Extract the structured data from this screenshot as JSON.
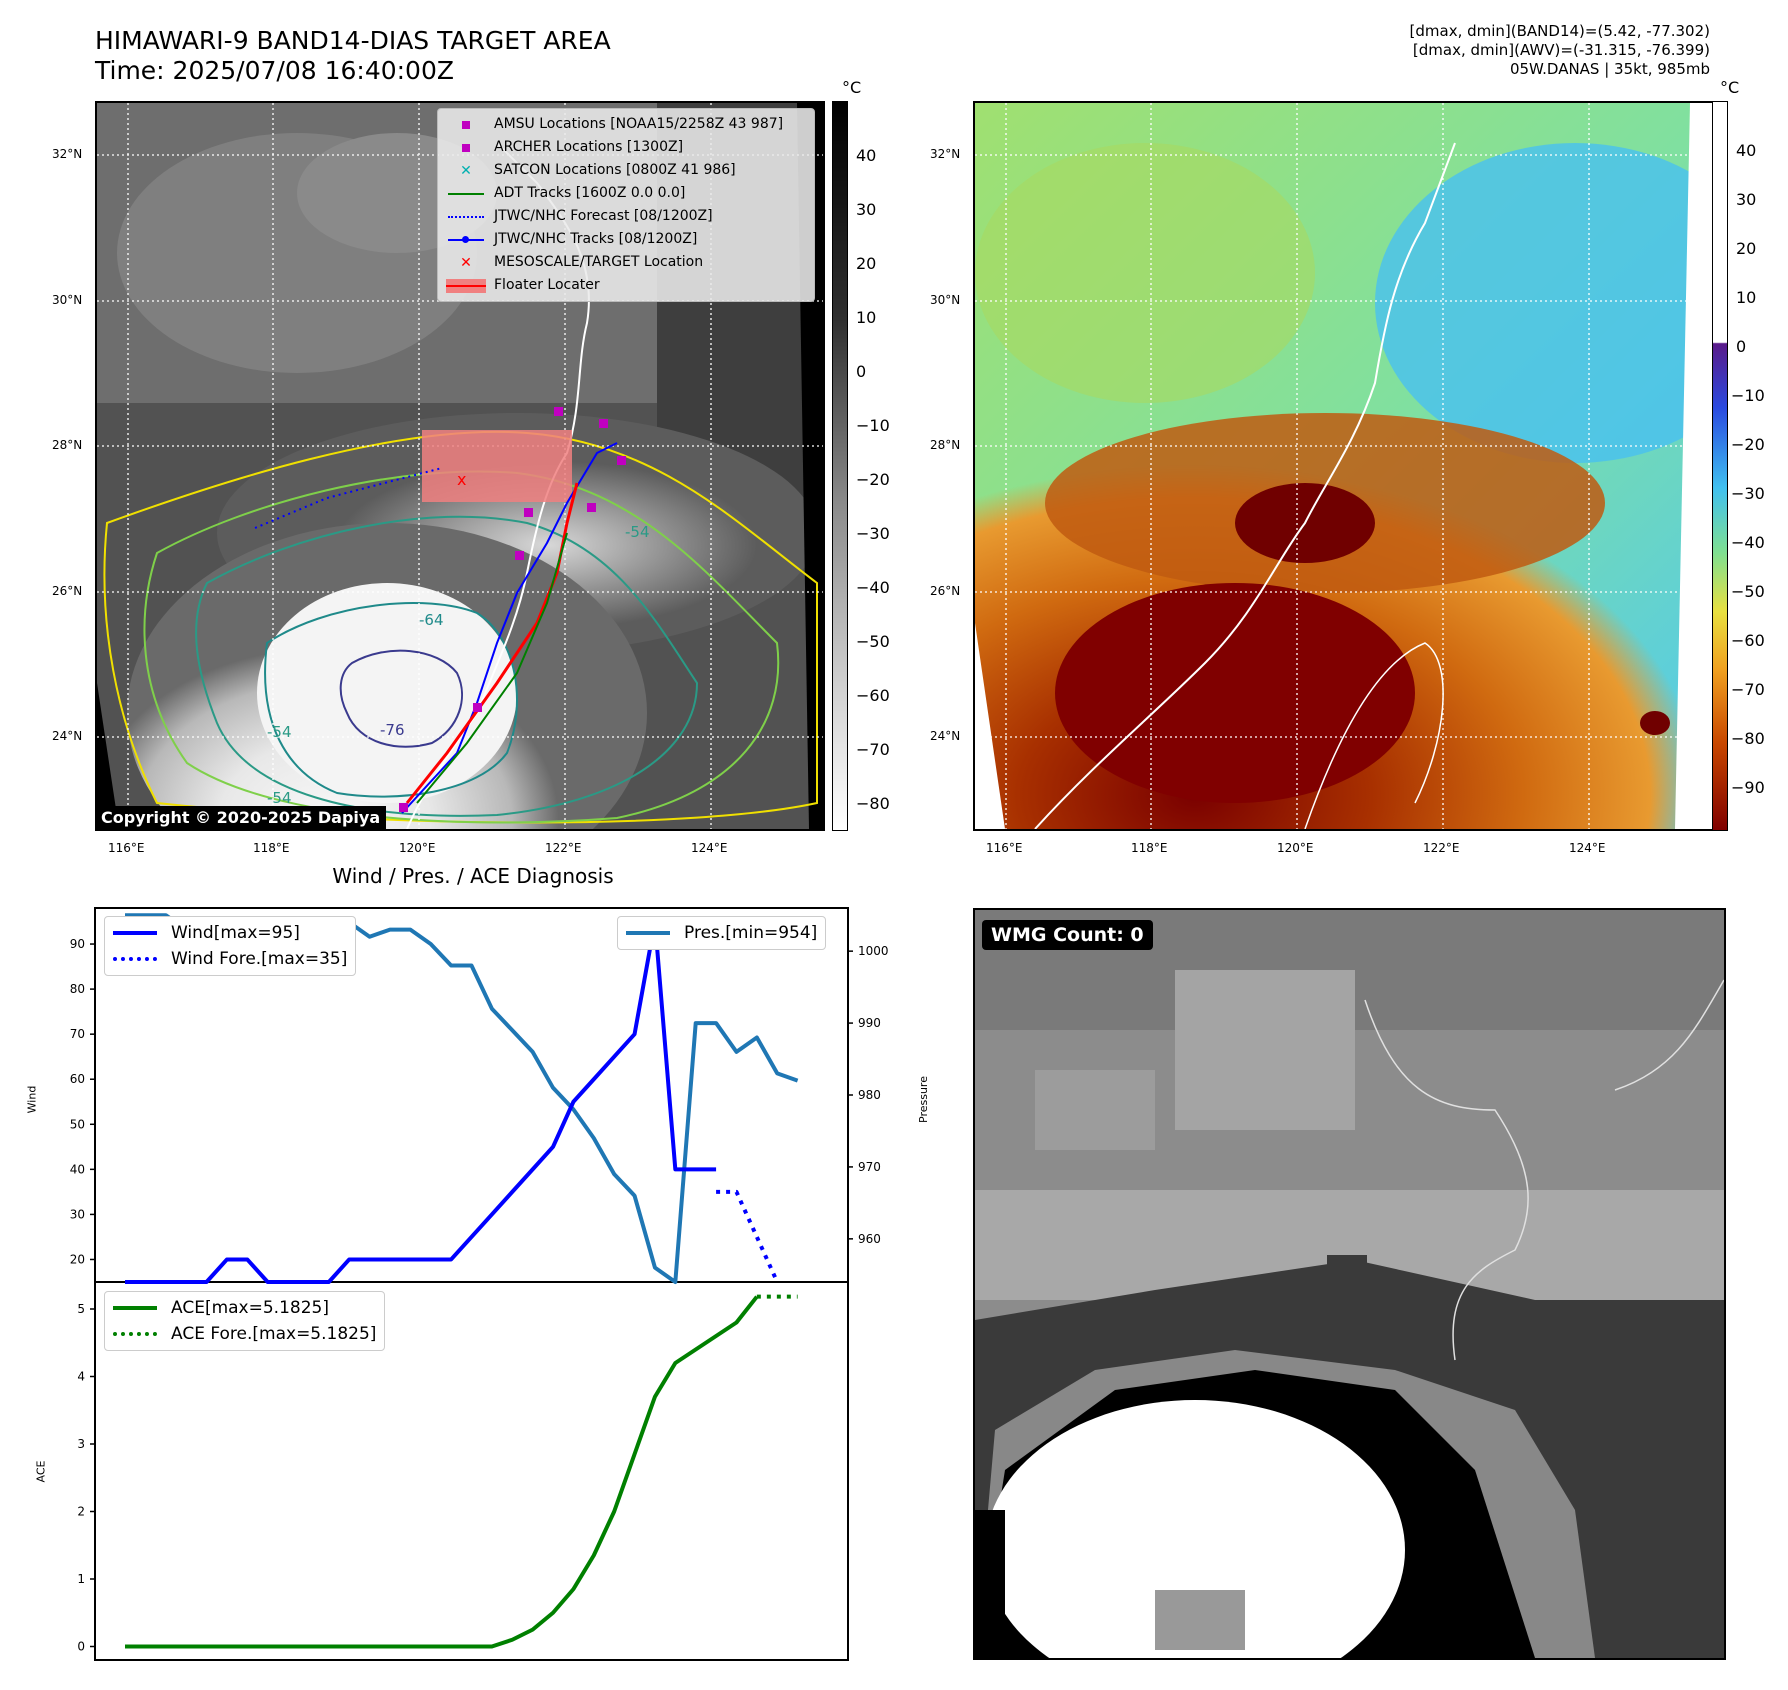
{
  "header": {
    "title_line1": "HIMAWARI-9 BAND14-DIAS TARGET AREA",
    "title_line2": "Time: 2025/07/08 16:40:00Z",
    "info_line1": "[dmax, dmin](BAND14)=(5.42, -77.302)",
    "info_line2": "[dmax, dmin](AWV)=(-31.315, -76.399)",
    "info_line3": "05W.DANAS | 35kt, 985mb"
  },
  "maps": {
    "lat_labels": [
      "32°N",
      "30°N",
      "28°N",
      "26°N",
      "24°N"
    ],
    "lon_labels": [
      "116°E",
      "118°E",
      "120°E",
      "122°E",
      "124°E"
    ],
    "unit": "°C",
    "gray_cbar_ticks": [
      "40",
      "30",
      "20",
      "10",
      "0",
      "−10",
      "−20",
      "−30",
      "−40",
      "−50",
      "−60",
      "−70",
      "−80"
    ],
    "awv_cbar_ticks": [
      "40",
      "30",
      "20",
      "10",
      "0",
      "−10",
      "−20",
      "−30",
      "−40",
      "−50",
      "−60",
      "−70",
      "−80",
      "−90"
    ],
    "contour_labels": [
      "-54",
      "-64",
      "-76",
      "-54",
      "-54"
    ],
    "copyright": "Copyright © 2020-2025 Dapiya",
    "legend": [
      {
        "label": "AMSU Locations [NOAA15/2258Z 43 987]",
        "color": "#c000c0",
        "marker": "square"
      },
      {
        "label": "ARCHER Locations [1300Z]",
        "color": "#c000c0",
        "marker": "square"
      },
      {
        "label": "SATCON Locations [0800Z 41 986]",
        "color": "#00b0b0",
        "marker": "x"
      },
      {
        "label": "ADT Tracks [1600Z 0.0 0.0]",
        "color": "#008000",
        "marker": "line"
      },
      {
        "label": "JTWC/NHC Forecast [08/1200Z]",
        "color": "#0000ff",
        "marker": "dotted"
      },
      {
        "label": "JTWC/NHC Tracks [08/1200Z]",
        "color": "#0000ff",
        "marker": "line-dot"
      },
      {
        "label": "MESOSCALE/TARGET Location",
        "color": "#ff0000",
        "marker": "x"
      },
      {
        "label": "Floater Locater",
        "color": "#ff0000",
        "marker": "patch"
      }
    ]
  },
  "diagnosis": {
    "title": "Wind / Pres. / ACE Diagnosis",
    "wind_ylabel": "Wind",
    "pres_ylabel": "Pressure",
    "ace_ylabel": "ACE",
    "wmg_count": "WMG Count: 0"
  },
  "chart_data": [
    {
      "type": "line",
      "title": "Wind / Pres. / ACE Diagnosis",
      "ylabel": "Wind",
      "ylim": [
        15,
        98
      ],
      "yticks": [
        20,
        30,
        40,
        50,
        60,
        70,
        80,
        90
      ],
      "series": [
        {
          "name": "Wind[max=95]",
          "color": "#0000ff",
          "style": "solid",
          "x": [
            0,
            1,
            2,
            3,
            4,
            5,
            6,
            7,
            8,
            9,
            10,
            11,
            12,
            13,
            14,
            15,
            16,
            17,
            18,
            19,
            20,
            21,
            22,
            23,
            24,
            25,
            26,
            27,
            28,
            29
          ],
          "values": [
            15,
            15,
            15,
            15,
            15,
            20,
            20,
            15,
            15,
            15,
            15,
            20,
            20,
            20,
            20,
            20,
            20,
            25,
            30,
            35,
            40,
            45,
            55,
            60,
            65,
            70,
            95,
            40,
            40,
            40
          ]
        },
        {
          "name": "Wind Fore.[max=35]",
          "color": "#0000ff",
          "style": "dotted",
          "x": [
            29,
            30,
            31,
            32
          ],
          "values": [
            35,
            35,
            25,
            15
          ]
        }
      ]
    },
    {
      "type": "line",
      "ylabel": "Pressure",
      "ylim": [
        954,
        1006
      ],
      "yticks": [
        960,
        970,
        980,
        990,
        1000
      ],
      "series": [
        {
          "name": "Pres.[min=954]",
          "color": "#1f77b4",
          "style": "solid",
          "x": [
            0,
            1,
            2,
            3,
            4,
            5,
            6,
            7,
            8,
            9,
            10,
            11,
            12,
            13,
            14,
            15,
            16,
            17,
            18,
            19,
            20,
            21,
            22,
            23,
            24,
            25,
            26,
            27,
            28,
            29,
            30,
            31,
            32,
            33
          ],
          "values": [
            1005,
            1005,
            1005,
            1003,
            1003,
            1003,
            1003,
            1004,
            1004,
            1003,
            1004,
            1004,
            1002,
            1003,
            1003,
            1001,
            998,
            998,
            992,
            989,
            986,
            981,
            978,
            974,
            969,
            966,
            956,
            954,
            990,
            990,
            986,
            988,
            983,
            982
          ]
        }
      ]
    },
    {
      "type": "line",
      "ylabel": "ACE",
      "ylim": [
        -0.2,
        5.4
      ],
      "yticks": [
        0,
        1,
        2,
        3,
        4,
        5
      ],
      "series": [
        {
          "name": "ACE[max=5.1825]",
          "color": "#008000",
          "style": "solid",
          "x": [
            0,
            2,
            4,
            6,
            8,
            10,
            12,
            14,
            16,
            18,
            19,
            20,
            21,
            22,
            23,
            24,
            25,
            26,
            27,
            28,
            29,
            30,
            31
          ],
          "values": [
            0,
            0,
            0,
            0,
            0,
            0,
            0,
            0,
            0,
            0,
            0.1,
            0.25,
            0.5,
            0.85,
            1.35,
            2.0,
            2.85,
            3.7,
            4.2,
            4.4,
            4.6,
            4.8,
            5.1825
          ]
        },
        {
          "name": "ACE Fore.[max=5.1825]",
          "color": "#008000",
          "style": "dotted",
          "x": [
            31,
            32,
            33
          ],
          "values": [
            5.1825,
            5.1825,
            5.1825
          ]
        }
      ]
    }
  ]
}
